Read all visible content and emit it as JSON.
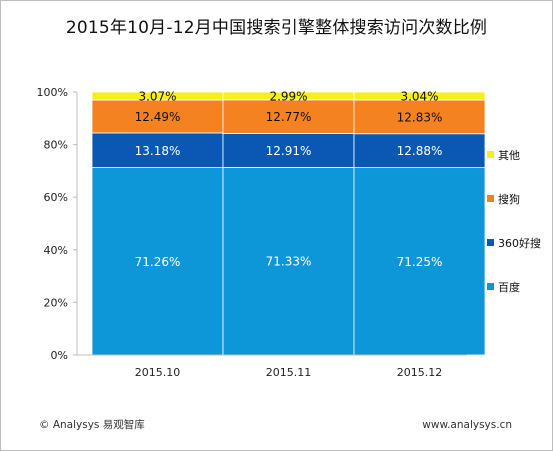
{
  "title": "2015年10月-12月中国搜索引擎整体搜索访问次数比例",
  "watermark": "易观智库",
  "footer": {
    "copyright": "© Analysys 易观智库",
    "website": "www.analysys.cn"
  },
  "colors": {
    "百度": "#0d96d8",
    "360好搜": "#0a58b4",
    "搜狗": "#f58220",
    "其他": "#f7ef1a"
  },
  "chart_data": {
    "type": "bar",
    "stacked": true,
    "categories": [
      "2015.10",
      "2015.11",
      "2015.12"
    ],
    "series": [
      {
        "name": "百度",
        "values": [
          71.26,
          71.33,
          71.25
        ],
        "labels": [
          "71.26%",
          "71.33%",
          "71.25%"
        ]
      },
      {
        "name": "360好搜",
        "values": [
          13.18,
          12.91,
          12.88
        ],
        "labels": [
          "13.18%",
          "12.91%",
          "12.88%"
        ]
      },
      {
        "name": "搜狗",
        "values": [
          12.49,
          12.77,
          12.83
        ],
        "labels": [
          "12.49%",
          "12.77%",
          "12.83%"
        ]
      },
      {
        "name": "其他",
        "values": [
          3.07,
          2.99,
          3.04
        ],
        "labels": [
          "3.07%",
          "2.99%",
          "3.04%"
        ]
      }
    ],
    "ylim": [
      0,
      100
    ],
    "yticks": [
      "0%",
      "20%",
      "40%",
      "60%",
      "80%",
      "100%"
    ],
    "grid": false,
    "legend": "right"
  }
}
